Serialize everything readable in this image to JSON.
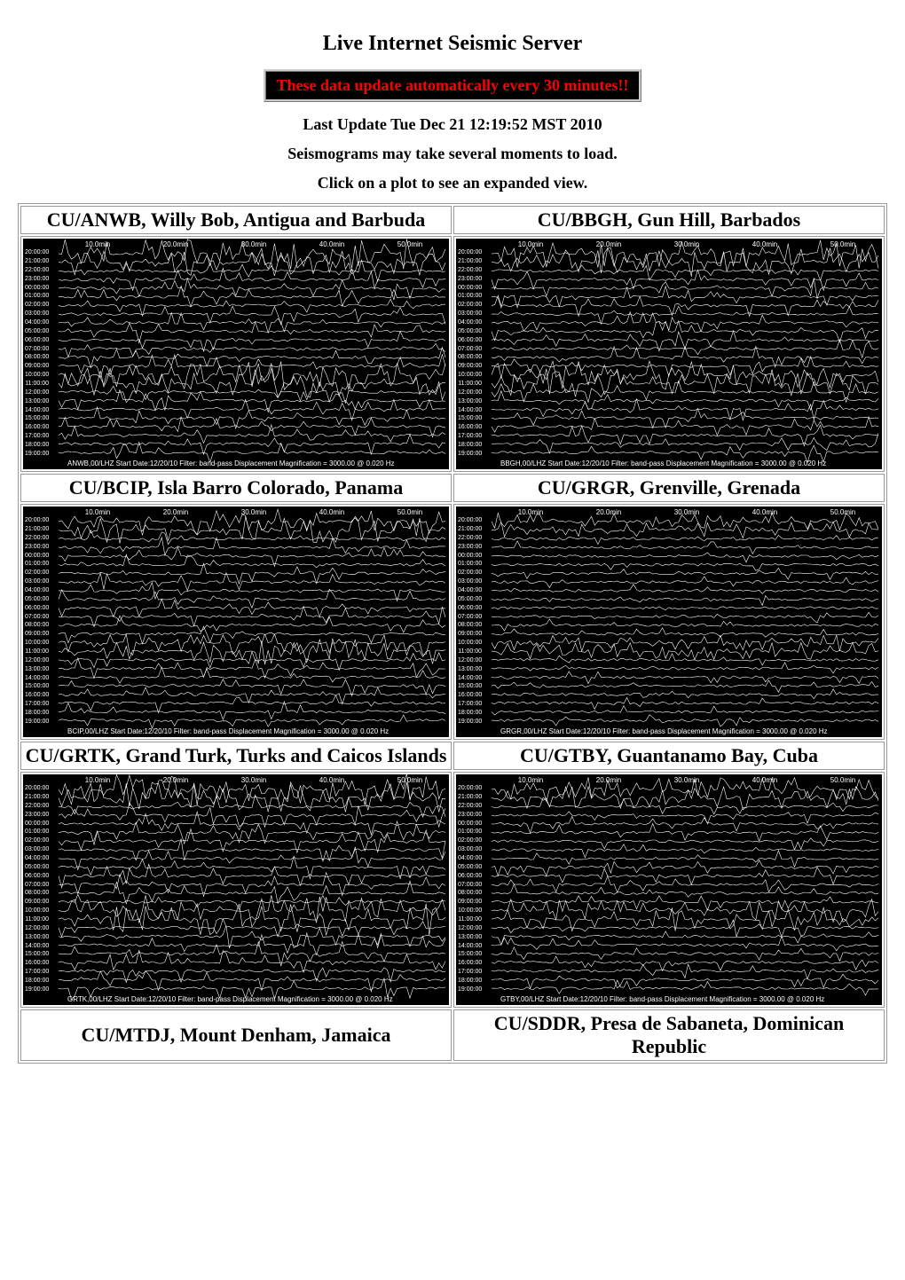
{
  "title": "Live Internet Seismic Server",
  "update_banner": "These data update automatically every 30 minutes!!",
  "last_update": "Last Update Tue Dec 21 12:19:52 MST 2010",
  "load_notice": "Seismograms may take several moments to load.",
  "click_notice": "Click on a plot to see an expanded view.",
  "colors": {
    "banner_bg": "#000000",
    "banner_text": "#ff0000",
    "seismo_bg": "#000000",
    "seismo_trace": "#ffffff"
  },
  "axis_labels": [
    "10.0min",
    "20.0min",
    "30.0min",
    "40.0min",
    "50.0min"
  ],
  "time_rows": [
    "20:00:00",
    "21:00:00",
    "22:00:00",
    "23:00:00",
    "00:00:00",
    "01:00:00",
    "02:00:00",
    "03:00:00",
    "04:00:00",
    "05:00:00",
    "06:00:00",
    "07:00:00",
    "08:00:00",
    "09:00:00",
    "10:00:00",
    "11:00:00",
    "12:00:00",
    "13:00:00",
    "14:00:00",
    "15:00:00",
    "16:00:00",
    "17:00:00",
    "18:00:00",
    "19:00:00"
  ],
  "stations": [
    {
      "title": "CU/ANWB, Willy Bob, Antigua and Barbuda",
      "caption": "ANWB,00/LHZ  Start Date:12/20/10  Filter: band-pass  Displacement Magnification =  3000.00 @ 0.020 Hz",
      "density": 0.9
    },
    {
      "title": "CU/BBGH, Gun Hill, Barbados",
      "caption": "BBGH,00/LHZ  Start Date:12/20/10  Filter: band-pass  Displacement Magnification =  3000.00 @ 0.020 Hz",
      "density": 0.85
    },
    {
      "title": "CU/BCIP, Isla Barro Colorado, Panama",
      "caption": "BCIP,00/LHZ  Start Date:12/20/10  Filter: band-pass  Displacement Magnification =  3000.00 @ 0.020 Hz",
      "density": 0.8
    },
    {
      "title": "CU/GRGR, Grenville, Grenada",
      "caption": "GRGR,00/LHZ  Start Date:12/20/10  Filter: band-pass  Displacement Magnification =  3000.00 @ 0.020 Hz",
      "density": 0.5
    },
    {
      "title": "CU/GRTK, Grand Turk, Turks and Caicos Islands",
      "caption": "GRTK,00/LHZ  Start Date:12/20/10  Filter: band-pass  Displacement Magnification =  3000.00 @ 0.020 Hz",
      "density": 0.95
    },
    {
      "title": "CU/GTBY, Guantanamo Bay, Cuba",
      "caption": "GTBY,00/LHZ  Start Date:12/20/10  Filter: band-pass  Displacement Magnification =  3000.00 @ 0.020 Hz",
      "density": 0.7
    },
    {
      "title": "CU/MTDJ, Mount Denham, Jamaica",
      "caption": "",
      "density": 0
    },
    {
      "title": "CU/SDDR, Presa de Sabaneta, Dominican Republic",
      "caption": "",
      "density": 0
    }
  ]
}
